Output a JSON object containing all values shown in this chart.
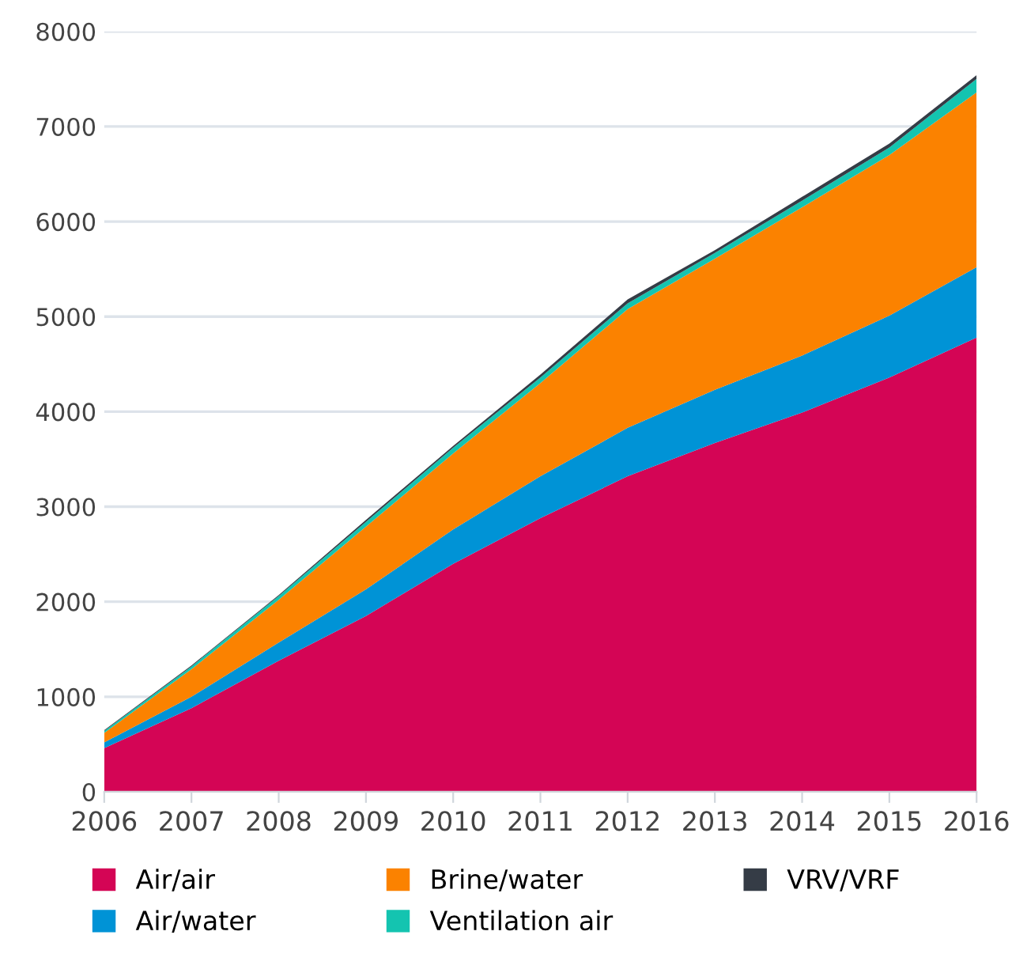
{
  "chart_data": {
    "type": "area",
    "stacked": true,
    "x": [
      2006,
      2007,
      2008,
      2009,
      2010,
      2011,
      2012,
      2013,
      2014,
      2015,
      2016
    ],
    "series": [
      {
        "name": "Air/air",
        "color": "#d40555",
        "values": [
          460,
          880,
          1380,
          1850,
          2400,
          2880,
          3320,
          3670,
          3990,
          4360,
          4780
        ]
      },
      {
        "name": "Air/water",
        "color": "#0093d6",
        "values": [
          60,
          120,
          190,
          280,
          360,
          440,
          510,
          560,
          600,
          650,
          740
        ]
      },
      {
        "name": "Brine/water",
        "color": "#fb8200",
        "values": [
          100,
          290,
          450,
          660,
          800,
          980,
          1250,
          1380,
          1560,
          1690,
          1840
        ]
      },
      {
        "name": "Ventilation air",
        "color": "#14c4b0",
        "values": [
          20,
          30,
          40,
          50,
          60,
          60,
          60,
          60,
          70,
          80,
          140
        ]
      },
      {
        "name": "VRV/VRF",
        "color": "#353c46",
        "values": [
          10,
          10,
          10,
          20,
          20,
          30,
          40,
          30,
          40,
          40,
          40
        ]
      }
    ],
    "xlim": [
      2006,
      2016
    ],
    "xticks": [
      2006,
      2007,
      2008,
      2009,
      2010,
      2011,
      2012,
      2013,
      2014,
      2015,
      2016
    ],
    "ylim": [
      0,
      8000
    ],
    "yticks": [
      0,
      1000,
      2000,
      3000,
      4000,
      5000,
      6000,
      7000,
      8000
    ],
    "grid": "y",
    "legend": "bottom"
  }
}
